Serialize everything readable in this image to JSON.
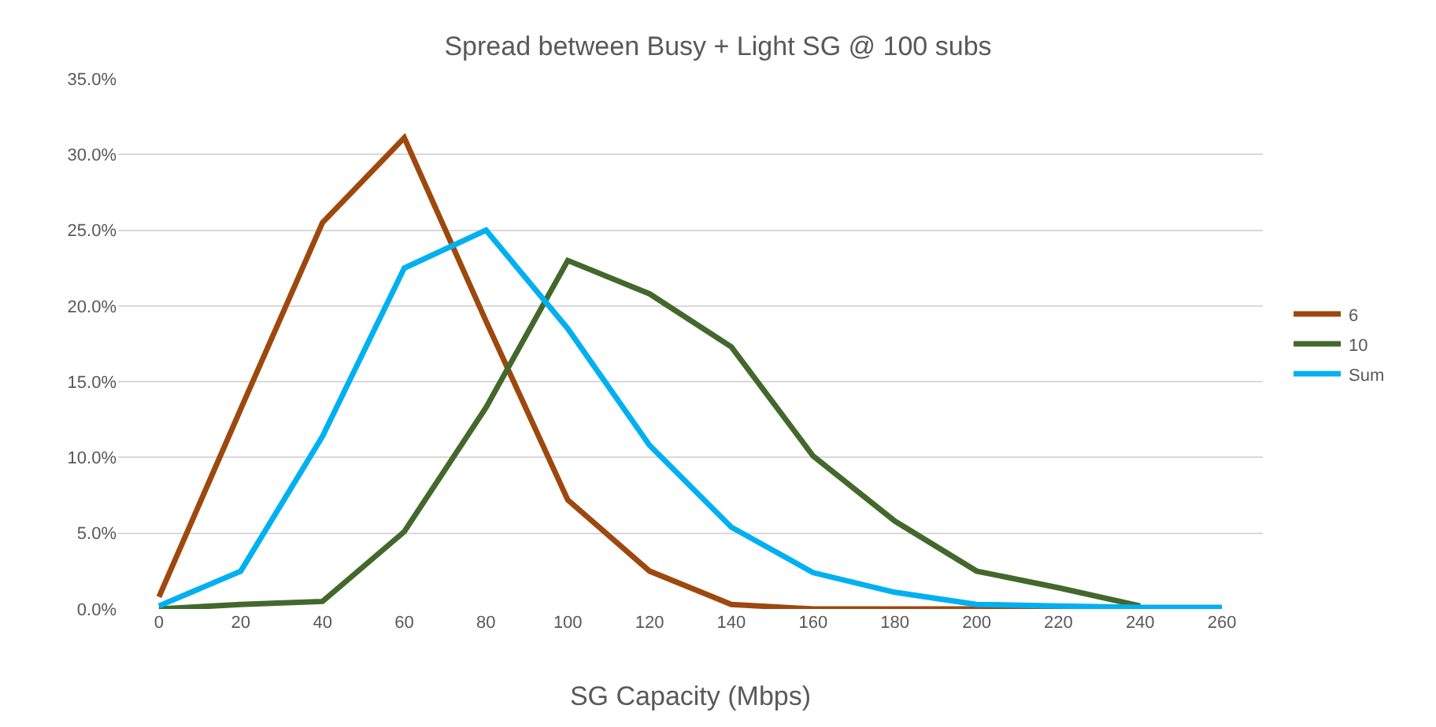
{
  "chart_data": {
    "type": "line",
    "title": "Spread between Busy + Light SG @ 100 subs",
    "xlabel": "SG Capacity (Mbps)",
    "categories": [
      "0",
      "20",
      "40",
      "60",
      "80",
      "100",
      "120",
      "140",
      "160",
      "180",
      "200",
      "220",
      "240",
      "260"
    ],
    "series": [
      {
        "name": "6",
        "color": "#9e480e",
        "values": [
          0.8,
          13.2,
          25.5,
          31.1,
          19.0,
          7.2,
          2.5,
          0.3,
          0,
          0,
          0,
          0,
          0,
          0
        ]
      },
      {
        "name": "10",
        "color": "#43682b",
        "values": [
          0,
          0.3,
          0.5,
          5.1,
          13.3,
          23.0,
          20.8,
          17.3,
          10.1,
          5.8,
          2.5,
          1.4,
          0.2,
          null
        ]
      },
      {
        "name": "Sum",
        "color": "#00b0f0",
        "values": [
          0.2,
          2.5,
          11.4,
          22.5,
          25.0,
          18.5,
          10.8,
          5.4,
          2.4,
          1.1,
          0.3,
          0.2,
          0.1,
          0.1
        ]
      }
    ],
    "ylim": [
      0,
      35
    ],
    "yticks": [
      {
        "value": 0,
        "label": "0.0%"
      },
      {
        "value": 5,
        "label": "5.0%"
      },
      {
        "value": 10,
        "label": "10.0%"
      },
      {
        "value": 15,
        "label": "15.0%"
      },
      {
        "value": 20,
        "label": "20.0%"
      },
      {
        "value": 25,
        "label": "25.0%"
      },
      {
        "value": 30,
        "label": "30.0%"
      },
      {
        "value": 35,
        "label": "35.0%"
      }
    ],
    "grid": "y",
    "legend": "right",
    "marker": "none",
    "line_style": "solid"
  }
}
